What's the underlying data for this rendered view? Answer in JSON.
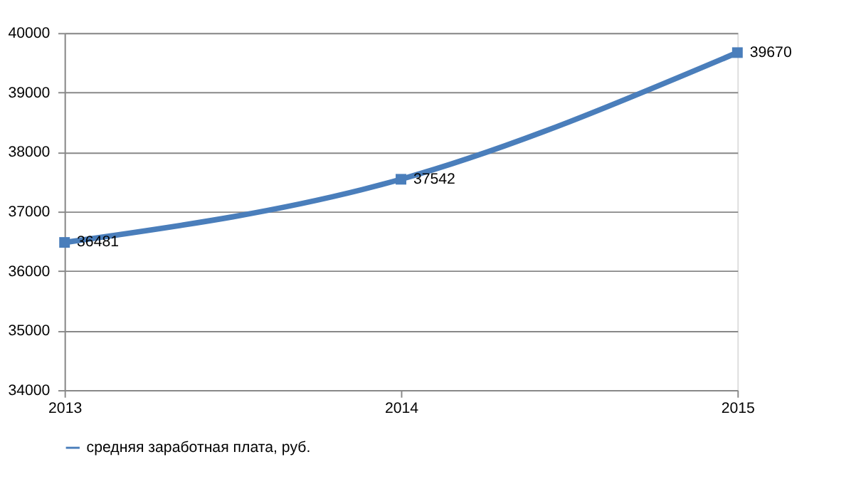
{
  "chart_data": {
    "type": "line",
    "categories": [
      "2013",
      "2014",
      "2015"
    ],
    "series": [
      {
        "name": "средняя заработная плата, руб.",
        "color": "#4a7ebb",
        "values": [
          36481,
          37542,
          39670
        ]
      }
    ],
    "ylim": [
      34000,
      40000
    ],
    "yticks": [
      34000,
      35000,
      36000,
      37000,
      38000,
      39000,
      40000
    ],
    "grid": "y",
    "legend": "bottom",
    "marker": "square",
    "line_style": "solid",
    "data_labels": true
  }
}
